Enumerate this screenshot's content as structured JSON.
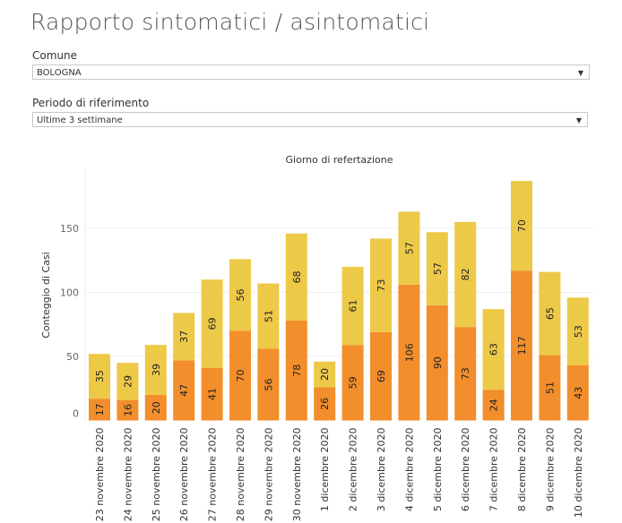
{
  "title": "Rapporto sintomatici / asintomatici",
  "filters": [
    {
      "label": "Comune",
      "value": "BOLOGNA"
    },
    {
      "label": "Periodo di riferimento",
      "value": "Ultime 3 settimane"
    }
  ],
  "colors": {
    "bottom": "#f28e2b",
    "top": "#edc948"
  },
  "chart_data": {
    "type": "bar",
    "stacked": true,
    "title": "Giorno di refertazione",
    "ylabel": "Conteggio di Casi",
    "xlabel": "",
    "ylim": [
      0,
      190
    ],
    "yticks": [
      0,
      50,
      100,
      150
    ],
    "grid": true,
    "categories": [
      "23 novembre 2020",
      "24 novembre 2020",
      "25 novembre 2020",
      "26 novembre 2020",
      "27 novembre 2020",
      "28 novembre 2020",
      "29 novembre 2020",
      "30 novembre 2020",
      "1 dicembre 2020",
      "2 dicembre 2020",
      "3 dicembre 2020",
      "4 dicembre 2020",
      "5 dicembre 2020",
      "6 dicembre 2020",
      "7 dicembre 2020",
      "8 dicembre 2020",
      "9 dicembre 2020",
      "10 dicembre 2020"
    ],
    "series": [
      {
        "name": "bottom",
        "values": [
          17,
          16,
          20,
          47,
          41,
          70,
          56,
          78,
          26,
          59,
          69,
          106,
          90,
          73,
          24,
          117,
          51,
          43
        ]
      },
      {
        "name": "top",
        "values": [
          35,
          29,
          39,
          37,
          69,
          56,
          51,
          68,
          20,
          61,
          73,
          57,
          57,
          82,
          63,
          70,
          65,
          53
        ]
      }
    ]
  }
}
